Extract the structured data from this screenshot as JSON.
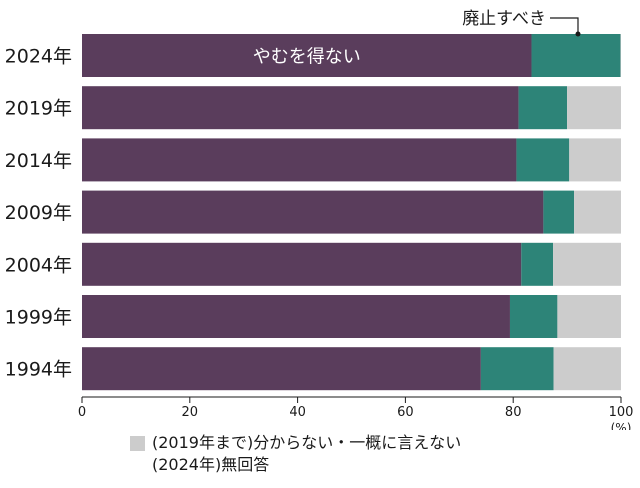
{
  "chart_data": {
    "type": "bar",
    "orientation": "horizontal",
    "stacked": true,
    "categories": [
      "2024年",
      "2019年",
      "2014年",
      "2009年",
      "2004年",
      "1999年",
      "1994年"
    ],
    "series": [
      {
        "name": "やむを得ない",
        "values": [
          83.4,
          81.0,
          80.6,
          85.6,
          81.5,
          79.4,
          74.0
        ],
        "color": "#5a3d5c"
      },
      {
        "name": "廃止すべき",
        "values": [
          16.5,
          9.0,
          9.8,
          5.7,
          5.9,
          8.8,
          13.5
        ],
        "color": "#2d8478"
      },
      {
        "name": "(2019年まで)分からない・一概に言えない (2024年)無回答",
        "values": [
          0.1,
          10.0,
          9.6,
          8.7,
          12.6,
          11.8,
          12.5
        ],
        "color": "#cccccc"
      }
    ],
    "xlim": [
      0,
      100
    ],
    "xticks": [
      "0",
      "20",
      "40",
      "60",
      "80",
      "100"
    ],
    "unit": "(%)",
    "grid": false,
    "labels": {
      "inside_first": "やむを得ない",
      "callout": "廃止すべき"
    },
    "legend": {
      "placement": "bottom",
      "lines": [
        "(2019年まで)分からない・一概に言えない",
        "(2024年)無回答"
      ]
    }
  }
}
